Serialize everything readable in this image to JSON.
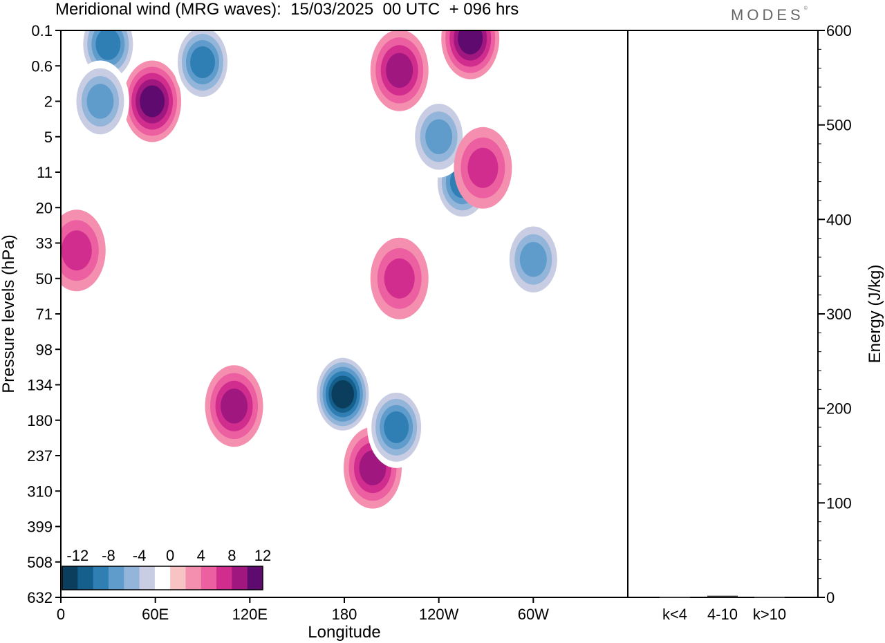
{
  "header": {
    "title": "Meridional wind (MRG waves):  15/03/2025  00 UTC  + 096 hrs",
    "logo": "MODES",
    "logo_mark": "©"
  },
  "chart_data": [
    {
      "type": "heatmap",
      "xlabel": "Longitude",
      "ylabel": "Pressure levels (hPa)",
      "x_ticks": [
        "0",
        "60E",
        "120E",
        "180",
        "120W",
        "60W"
      ],
      "x_tick_degrees": [
        0,
        60,
        120,
        180,
        240,
        300
      ],
      "xlim": [
        0,
        360
      ],
      "y_ticks": [
        "0.1",
        "0.6",
        "2",
        "5",
        "11",
        "20",
        "33",
        "50",
        "71",
        "98",
        "134",
        "180",
        "237",
        "310",
        "399",
        "508",
        "632"
      ],
      "colorbar": {
        "labels": [
          "-12",
          "-8",
          "-4",
          "0",
          "4",
          "8",
          "12"
        ],
        "levels": [
          -14,
          -12,
          -10,
          -8,
          -6,
          -4,
          -2,
          2,
          4,
          6,
          8,
          10,
          12,
          14
        ],
        "colors": [
          "#0b3d5c",
          "#155f8c",
          "#2f7fb5",
          "#5f9ccb",
          "#93b5d9",
          "#c8cde3",
          "#ffffff",
          "#f8c3c3",
          "#f58fb0",
          "#ec5fa0",
          "#d12d8e",
          "#a01780",
          "#5e0a6e"
        ]
      },
      "features": [
        {
          "lon": 30,
          "lev": 0.2,
          "v": -10
        },
        {
          "lon": 58,
          "lev": 2,
          "v": 11
        },
        {
          "lon": 90,
          "lev": 0.5,
          "v": -11
        },
        {
          "lon": 25,
          "lev": 2,
          "v": -8
        },
        {
          "lon": 260,
          "lev": 0.15,
          "v": 11
        },
        {
          "lon": 215,
          "lev": 0.7,
          "v": 9
        },
        {
          "lon": 255,
          "lev": 13,
          "v": -10
        },
        {
          "lon": 240,
          "lev": 5,
          "v": -8
        },
        {
          "lon": 110,
          "lev": 160,
          "v": 8
        },
        {
          "lon": 179,
          "lev": 145,
          "v": -14
        },
        {
          "lon": 198,
          "lev": 260,
          "v": 8
        },
        {
          "lon": 213,
          "lev": 190,
          "v": -10
        },
        {
          "lon": 300,
          "lev": 40,
          "v": -8
        },
        {
          "lon": 10,
          "lev": 36,
          "v": 6
        },
        {
          "lon": 215,
          "lev": 50,
          "v": 6
        },
        {
          "lon": 268,
          "lev": 10,
          "v": 6
        }
      ]
    },
    {
      "type": "bar",
      "categories": [
        "k<4",
        "4-10",
        "k>10"
      ],
      "values": [
        0,
        1,
        0
      ],
      "ylabel": "Energy (J/kg)",
      "ylim": [
        0,
        600
      ],
      "y_ticks": [
        "0",
        "100",
        "200",
        "300",
        "400",
        "500",
        "600"
      ]
    }
  ]
}
